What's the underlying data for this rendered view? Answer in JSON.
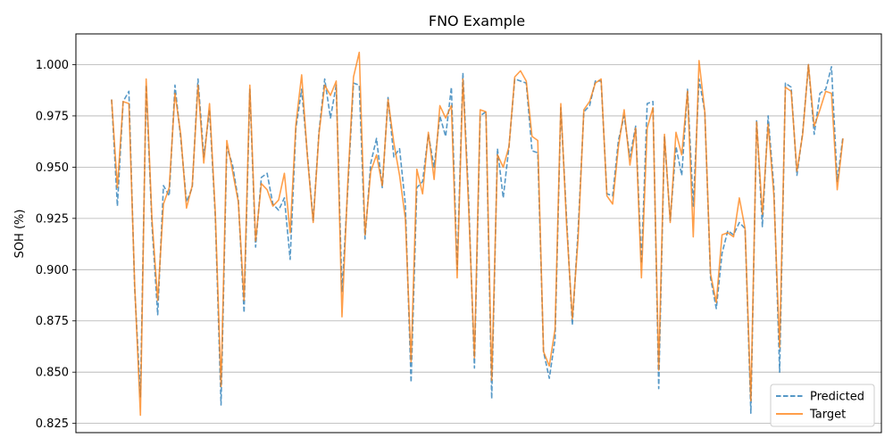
{
  "chart_data": {
    "type": "line",
    "title": "FNO Example",
    "xlabel": "",
    "ylabel": "SOH (%)",
    "ylim": [
      0.8205,
      1.015
    ],
    "yticks": [
      "0.825",
      "0.850",
      "0.875",
      "0.900",
      "0.925",
      "0.950",
      "0.975",
      "1.000"
    ],
    "grid": "horizontal",
    "legend_position": "lower-right",
    "colors": {
      "Predicted": "#1f77b4",
      "Target": "#ff7f0e"
    },
    "series": [
      {
        "name": "Predicted",
        "style": "dashed",
        "values": [
          0.983,
          0.931,
          0.982,
          0.987,
          0.891,
          0.838,
          0.99,
          0.922,
          0.878,
          0.941,
          0.936,
          0.99,
          0.964,
          0.933,
          0.94,
          0.993,
          0.955,
          0.978,
          0.926,
          0.834,
          0.96,
          0.951,
          0.934,
          0.879,
          0.988,
          0.911,
          0.945,
          0.947,
          0.932,
          0.929,
          0.935,
          0.905,
          0.969,
          0.988,
          0.956,
          0.924,
          0.967,
          0.993,
          0.974,
          0.99,
          0.889,
          0.939,
          0.991,
          0.99,
          0.915,
          0.952,
          0.964,
          0.94,
          0.984,
          0.955,
          0.959,
          0.932,
          0.845,
          0.94,
          0.943,
          0.966,
          0.95,
          0.975,
          0.965,
          0.989,
          0.9,
          0.996,
          0.934,
          0.852,
          0.975,
          0.977,
          0.837,
          0.959,
          0.935,
          0.96,
          0.993,
          0.992,
          0.991,
          0.958,
          0.957,
          0.86,
          0.847,
          0.866,
          0.979,
          0.925,
          0.873,
          0.919,
          0.977,
          0.98,
          0.992,
          0.992,
          0.937,
          0.936,
          0.963,
          0.975,
          0.955,
          0.97,
          0.903,
          0.981,
          0.982,
          0.842,
          0.965,
          0.924,
          0.96,
          0.946,
          0.988,
          0.931,
          0.993,
          0.977,
          0.896,
          0.881,
          0.908,
          0.919,
          0.917,
          0.923,
          0.92,
          0.83,
          0.973,
          0.921,
          0.975,
          0.94,
          0.85,
          0.991,
          0.989,
          0.946,
          0.967,
          1.0,
          0.966,
          0.986,
          0.988,
          0.999,
          0.943,
          0.965
        ]
      },
      {
        "name": "Target",
        "style": "solid",
        "values": [
          0.983,
          0.94,
          0.982,
          0.981,
          0.893,
          0.829,
          0.993,
          0.925,
          0.885,
          0.932,
          0.94,
          0.986,
          0.966,
          0.93,
          0.941,
          0.99,
          0.952,
          0.981,
          0.928,
          0.843,
          0.963,
          0.948,
          0.933,
          0.885,
          0.99,
          0.914,
          0.942,
          0.939,
          0.931,
          0.934,
          0.947,
          0.918,
          0.971,
          0.995,
          0.955,
          0.923,
          0.966,
          0.99,
          0.985,
          0.992,
          0.877,
          0.942,
          0.994,
          1.006,
          0.917,
          0.948,
          0.956,
          0.941,
          0.983,
          0.962,
          0.946,
          0.925,
          0.855,
          0.949,
          0.937,
          0.967,
          0.944,
          0.98,
          0.974,
          0.98,
          0.896,
          0.993,
          0.93,
          0.857,
          0.978,
          0.977,
          0.846,
          0.956,
          0.95,
          0.96,
          0.994,
          0.997,
          0.992,
          0.965,
          0.963,
          0.86,
          0.853,
          0.871,
          0.981,
          0.922,
          0.876,
          0.915,
          0.978,
          0.982,
          0.991,
          0.993,
          0.936,
          0.932,
          0.96,
          0.978,
          0.951,
          0.969,
          0.896,
          0.969,
          0.979,
          0.851,
          0.966,
          0.923,
          0.967,
          0.956,
          0.987,
          0.916,
          1.002,
          0.977,
          0.898,
          0.884,
          0.917,
          0.918,
          0.916,
          0.935,
          0.92,
          0.836,
          0.972,
          0.927,
          0.971,
          0.936,
          0.862,
          0.989,
          0.987,
          0.948,
          0.966,
          1.0,
          0.97,
          0.978,
          0.987,
          0.986,
          0.939,
          0.964
        ]
      }
    ]
  }
}
